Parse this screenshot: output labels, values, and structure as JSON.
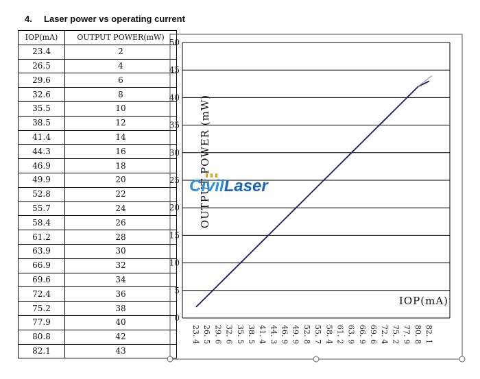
{
  "heading": {
    "number": "4.",
    "title": "Laser power vs operating current"
  },
  "table": {
    "headers": [
      "IOP(mA)",
      "OUTPUT POWER(mW)"
    ],
    "rows": [
      [
        "23.4",
        "2"
      ],
      [
        "26.5",
        "4"
      ],
      [
        "29.6",
        "6"
      ],
      [
        "32.6",
        "8"
      ],
      [
        "35.5",
        "10"
      ],
      [
        "38.5",
        "12"
      ],
      [
        "41.4",
        "14"
      ],
      [
        "44.3",
        "16"
      ],
      [
        "46.9",
        "18"
      ],
      [
        "49.9",
        "20"
      ],
      [
        "52.8",
        "22"
      ],
      [
        "55.7",
        "24"
      ],
      [
        "58.4",
        "26"
      ],
      [
        "61.2",
        "28"
      ],
      [
        "63.9",
        "30"
      ],
      [
        "66.9",
        "32"
      ],
      [
        "69.6",
        "34"
      ],
      [
        "72.4",
        "36"
      ],
      [
        "75.2",
        "38"
      ],
      [
        "77.9",
        "40"
      ],
      [
        "80.8",
        "42"
      ],
      [
        "82.1",
        "43"
      ]
    ]
  },
  "watermark": {
    "part1": "Ci",
    "part2": "vil",
    "part3": "Laser",
    "color1": "#2d8fd8",
    "color2": "#1a63b5"
  },
  "chart_data": {
    "type": "line",
    "xlabel": "IOP(mA)",
    "ylabel": "OUTPUT POWER (mW)",
    "ylim": [
      0,
      50
    ],
    "yticks": [
      "0",
      "5",
      "10",
      "15",
      "20",
      "25",
      "30",
      "35",
      "40",
      "45",
      "50"
    ],
    "categories": [
      "23.4",
      "26.5",
      "29.6",
      "32.6",
      "35.5",
      "38.5",
      "41.4",
      "44.3",
      "46.9",
      "49.9",
      "52.8",
      "55.7",
      "58.4",
      "61.2",
      "63.9",
      "66.9",
      "69.6",
      "72.4",
      "75.2",
      "77.9",
      "80.8",
      "82.1"
    ],
    "categories_display": [
      "23. 4",
      "26. 5",
      "29. 6",
      "32. 6",
      "35. 5",
      "38. 5",
      "41. 4",
      "44. 3",
      "46. 9",
      "49. 9",
      "52. 8",
      "55. 7",
      "58. 4",
      "61. 2",
      "63. 9",
      "66. 9",
      "69. 6",
      "72. 4",
      "75. 2",
      "77. 9",
      "80. 8",
      "82. 1"
    ],
    "series": [
      {
        "values": [
          2,
          4,
          6,
          8,
          10,
          12,
          14,
          16,
          18,
          20,
          22,
          24,
          26,
          28,
          30,
          32,
          34,
          36,
          38,
          40,
          42,
          43
        ],
        "color": "#1a1a66"
      }
    ],
    "grid": true,
    "line_color": "#1a1a66"
  }
}
